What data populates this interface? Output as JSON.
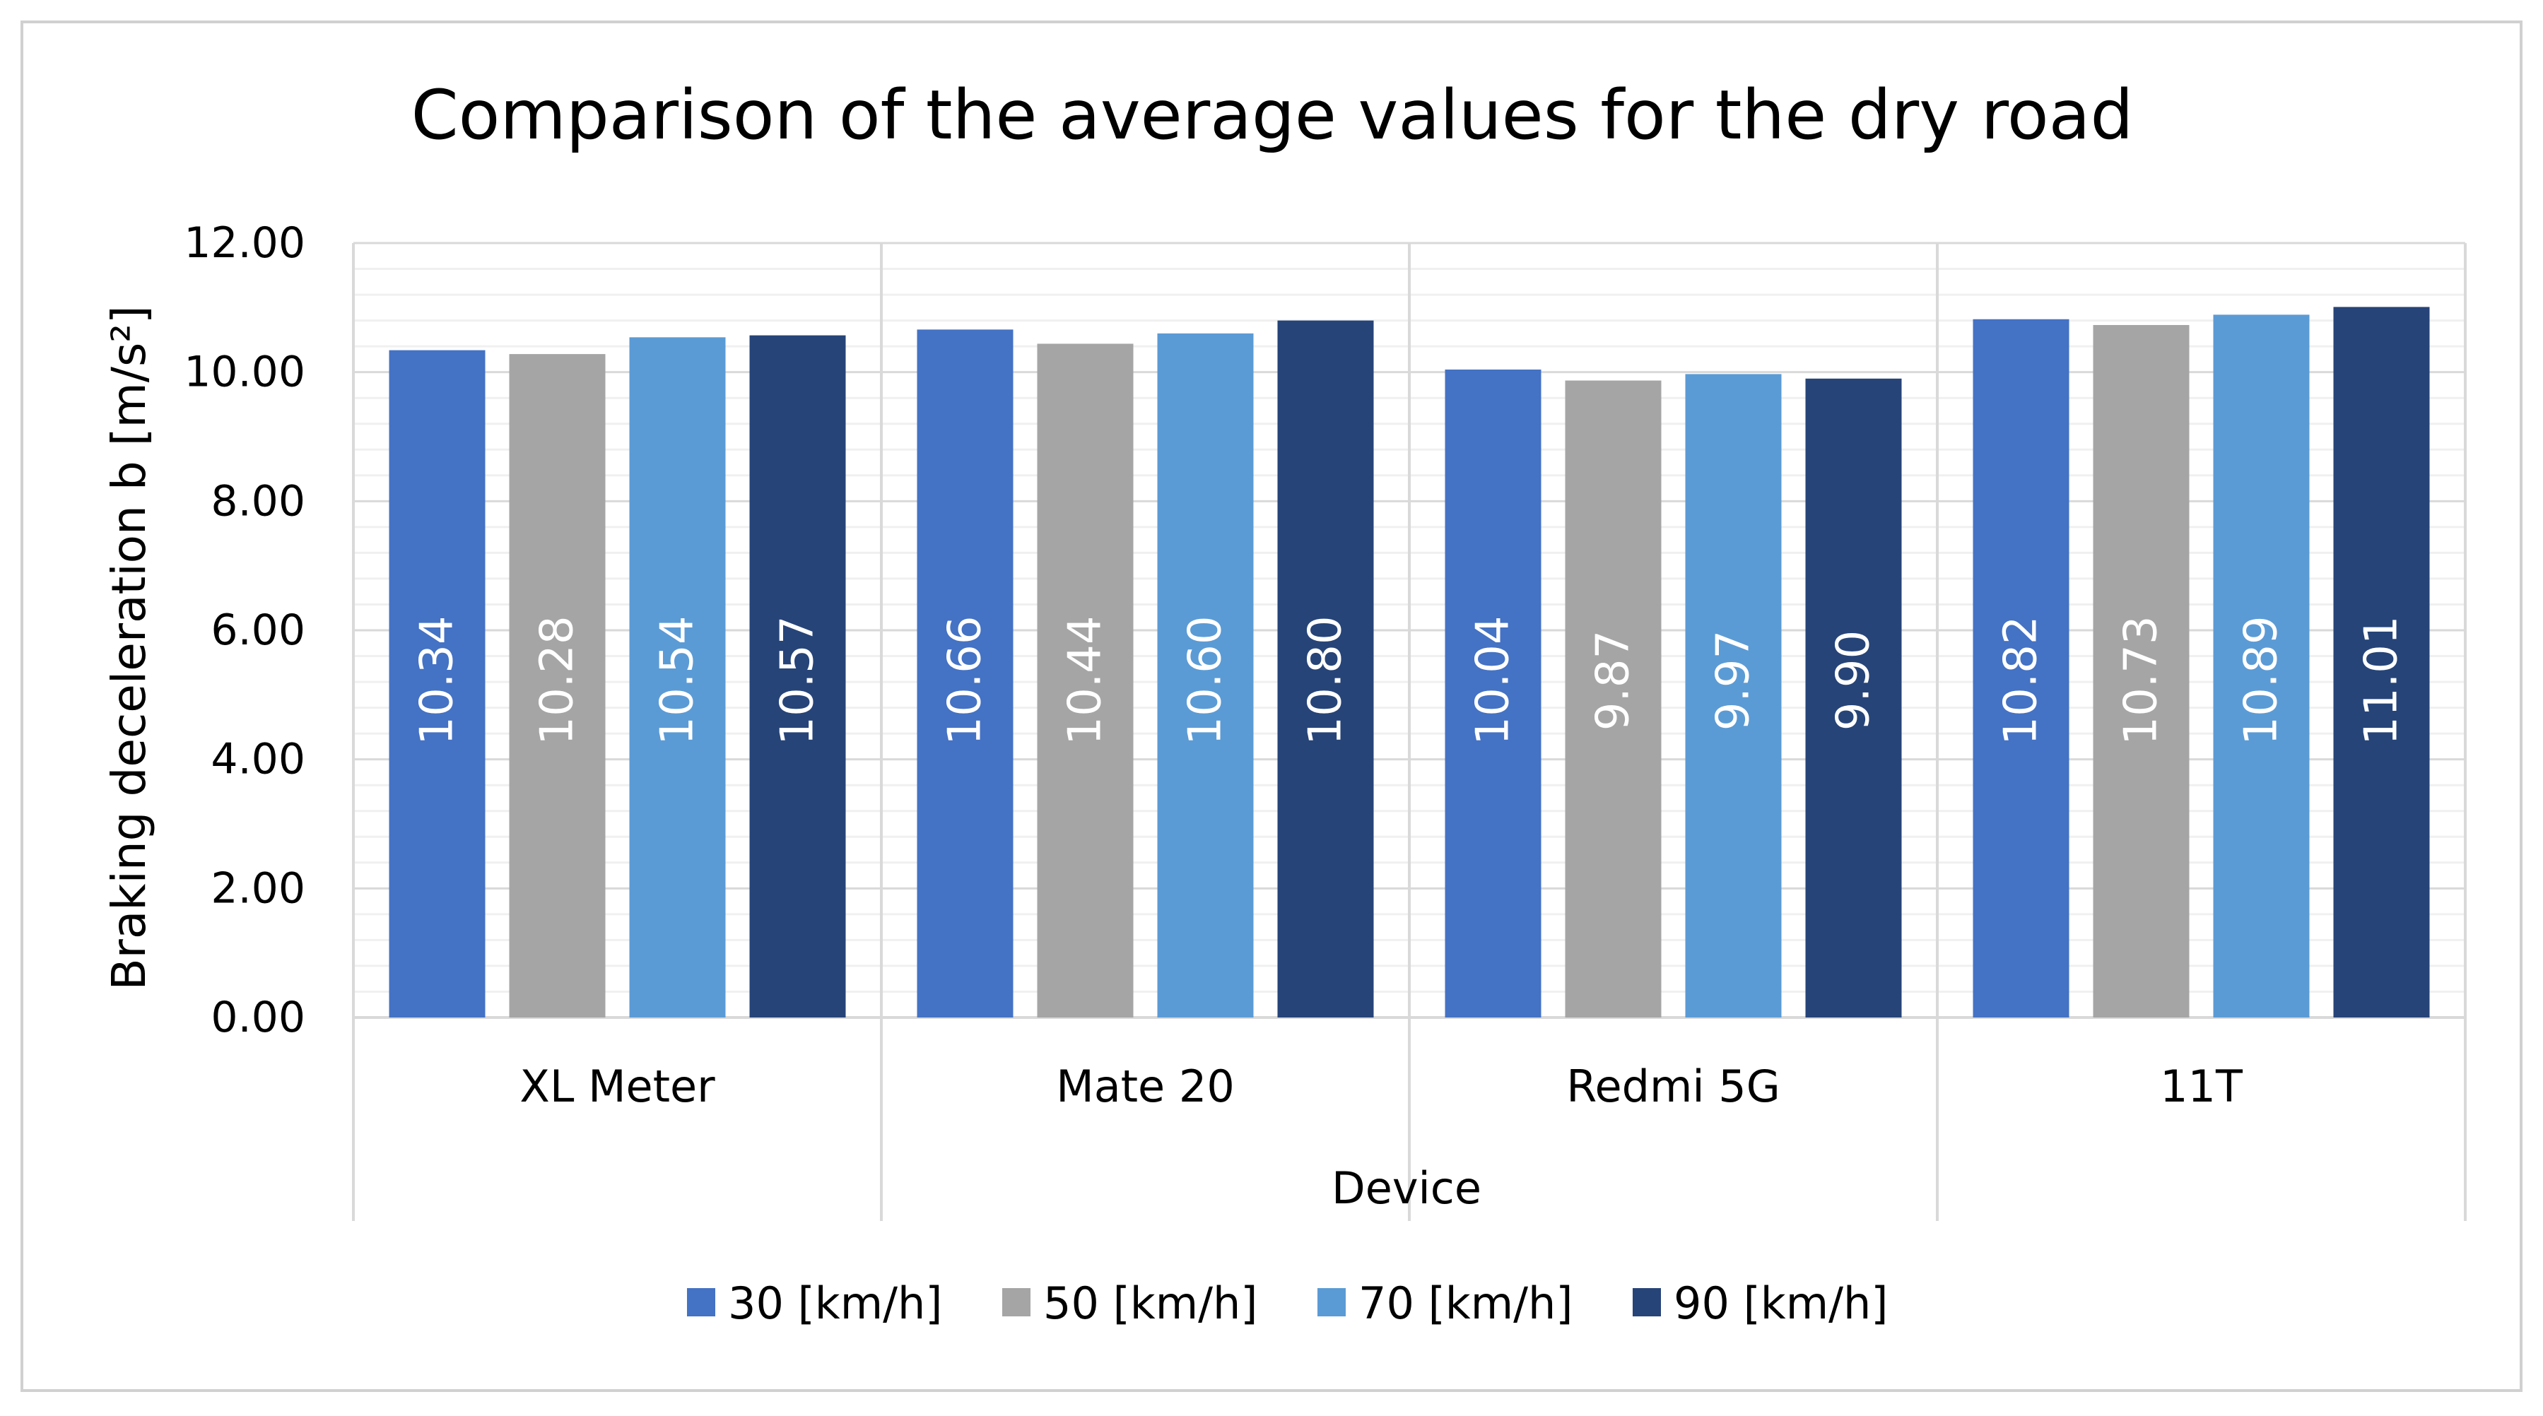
{
  "chart_data": {
    "type": "bar",
    "title": "Comparison of the average values for the dry road",
    "xlabel": "Device",
    "ylabel": "Braking deceleration b [m/s²]",
    "ylim": [
      0,
      12
    ],
    "yticks": [
      0,
      2,
      4,
      6,
      8,
      10,
      12
    ],
    "ytick_labels": [
      "0.00",
      "2.00",
      "4.00",
      "6.00",
      "8.00",
      "10.00",
      "12.00"
    ],
    "minor_grid_step": 0.4,
    "grid": true,
    "legend_position": "bottom",
    "categories": [
      "XL Meter",
      "Mate 20",
      "Redmi 5G",
      "11T"
    ],
    "series": [
      {
        "name": "30 [km/h]",
        "color": "#4472C4",
        "values": [
          10.34,
          10.66,
          10.04,
          10.82
        ],
        "labels": [
          "10.34",
          "10.66",
          "10.04",
          "10.82"
        ]
      },
      {
        "name": "50 [km/h]",
        "color": "#A5A5A5",
        "values": [
          10.28,
          10.44,
          9.87,
          10.73
        ],
        "labels": [
          "10.28",
          "10.44",
          "9.87",
          "10.73"
        ]
      },
      {
        "name": "70 [km/h]",
        "color": "#5B9BD5",
        "values": [
          10.54,
          10.6,
          9.97,
          10.89
        ],
        "labels": [
          "10.54",
          "10.60",
          "9.97",
          "10.89"
        ]
      },
      {
        "name": "90 [km/h]",
        "color": "#264478",
        "values": [
          10.57,
          10.8,
          9.9,
          11.01
        ],
        "labels": [
          "10.57",
          "10.80",
          "9.90",
          "11.01"
        ]
      }
    ]
  }
}
